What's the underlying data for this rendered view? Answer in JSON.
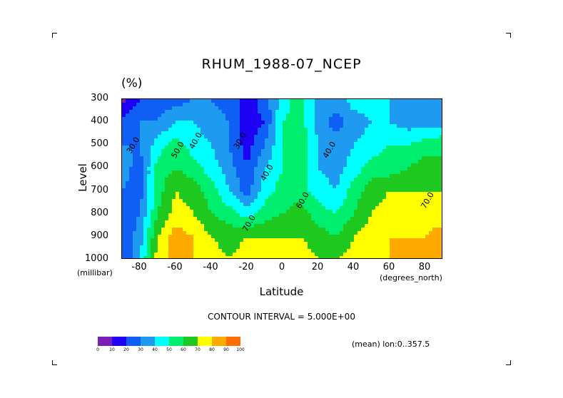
{
  "header": {
    "title": "RHUM_1988-07_NCEP",
    "units": "(%)"
  },
  "axes": {
    "ylabel": "Level",
    "xlabel": "Latitude",
    "yunits": "(millibar)",
    "xunits": "(degrees_north)",
    "yticks": [
      "300",
      "400",
      "500",
      "600",
      "700",
      "800",
      "900",
      "1000"
    ],
    "xticks": [
      "-80",
      "-60",
      "-40",
      "-20",
      "0",
      "20",
      "40",
      "60",
      "80"
    ]
  },
  "footer": {
    "interval": "CONTOUR INTERVAL = 5.000E+00",
    "meta": "(mean) lon:0..357.5"
  },
  "colorbar": {
    "labels": [
      "0",
      "10",
      "20",
      "30",
      "40",
      "50",
      "60",
      "70",
      "80",
      "90",
      "100"
    ],
    "colors": [
      "#7a1fb4",
      "#1e00f5",
      "#0f5ff5",
      "#1e9bf0",
      "#00ffff",
      "#00ee6e",
      "#1ec81e",
      "#ffff00",
      "#ffaa00",
      "#ff6e00",
      "#ff0000"
    ]
  },
  "chart_data": {
    "type": "heatmap",
    "title": "RHUM_1988-07_NCEP",
    "xlabel": "Latitude",
    "ylabel": "Level",
    "xlim": [
      -90,
      90
    ],
    "ylim": [
      1000,
      300
    ],
    "x": [
      -90,
      -80,
      -70,
      -60,
      -50,
      -40,
      -30,
      -20,
      -10,
      0,
      10,
      20,
      30,
      40,
      50,
      60,
      70,
      80,
      90
    ],
    "y": [
      300,
      400,
      500,
      600,
      700,
      800,
      900,
      1000
    ],
    "values": [
      [
        5,
        20,
        25,
        25,
        30,
        30,
        25,
        15,
        25,
        45,
        55,
        35,
        35,
        45,
        45,
        40,
        35,
        30,
        30
      ],
      [
        25,
        30,
        30,
        40,
        40,
        35,
        30,
        15,
        20,
        50,
        55,
        35,
        25,
        35,
        40,
        40,
        35,
        35,
        35
      ],
      [
        30,
        30,
        45,
        55,
        45,
        40,
        30,
        15,
        30,
        50,
        60,
        40,
        35,
        40,
        45,
        50,
        50,
        55,
        60
      ],
      [
        35,
        25,
        55,
        60,
        55,
        45,
        35,
        20,
        40,
        50,
        55,
        40,
        35,
        45,
        55,
        55,
        60,
        65,
        60
      ],
      [
        30,
        25,
        55,
        70,
        65,
        55,
        40,
        25,
        45,
        55,
        55,
        45,
        40,
        55,
        65,
        70,
        70,
        70,
        70
      ],
      [
        25,
        30,
        60,
        75,
        70,
        60,
        55,
        45,
        55,
        60,
        65,
        55,
        50,
        60,
        70,
        75,
        75,
        75,
        75
      ],
      [
        20,
        35,
        70,
        85,
        80,
        70,
        65,
        70,
        70,
        70,
        70,
        65,
        60,
        70,
        75,
        80,
        80,
        80,
        85
      ],
      [
        20,
        40,
        75,
        85,
        80,
        75,
        70,
        75,
        75,
        80,
        75,
        70,
        70,
        75,
        80,
        80,
        85,
        80,
        85
      ]
    ],
    "levels": [
      0,
      10,
      20,
      30,
      40,
      50,
      60,
      70,
      80,
      90,
      100
    ],
    "contour_labels": [
      "40.0",
      "50.0",
      "60.0",
      "30.0",
      "70.0"
    ]
  }
}
